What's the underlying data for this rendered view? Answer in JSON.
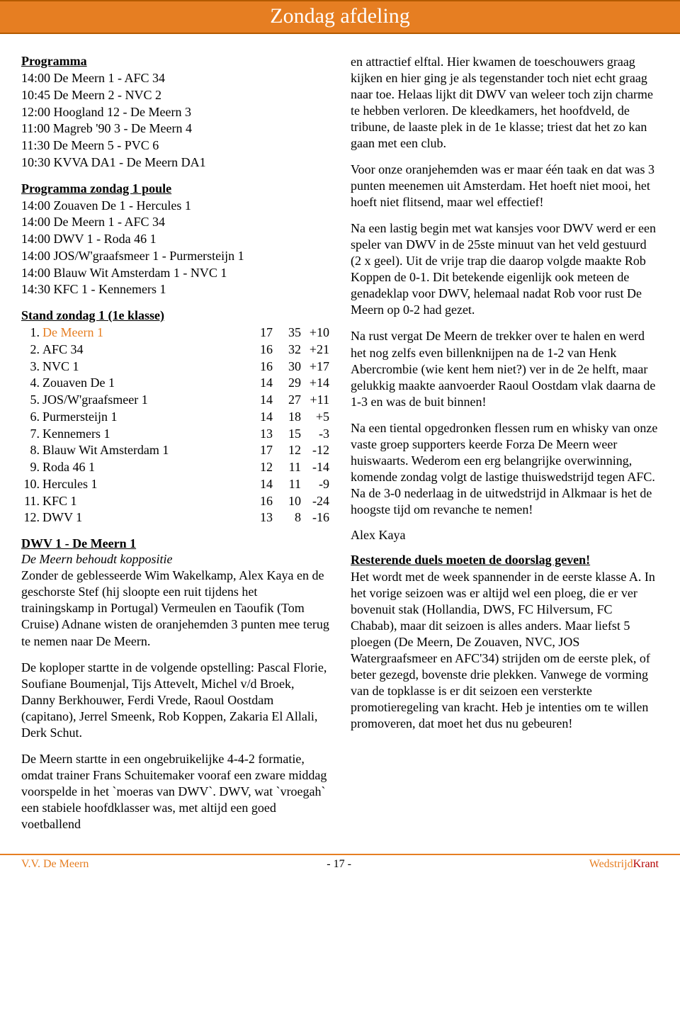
{
  "header": {
    "title": "Zondag afdeling"
  },
  "programma": {
    "heading": "Programma",
    "items": [
      "14:00 De Meern 1 - AFC 34",
      "10:45 De Meern 2 - NVC 2",
      "12:00 Hoogland 12 - De Meern 3",
      "11:00 Magreb '90 3 - De Meern 4",
      "11:30 De Meern 5 - PVC 6",
      "10:30 KVVA DA1 - De Meern DA1"
    ]
  },
  "poule": {
    "heading": "Programma zondag 1 poule",
    "items": [
      "14:00 Zouaven De 1 - Hercules 1",
      "14:00 De Meern 1 - AFC 34",
      "14:00 DWV 1 - Roda 46 1",
      "14:00 JOS/W'graafsmeer 1 - Purmersteijn 1",
      "14:00 Blauw Wit Amsterdam 1 - NVC 1",
      "14:30 KFC 1 - Kennemers 1"
    ]
  },
  "stand": {
    "heading": "Stand zondag 1 (1e klasse)",
    "rows": [
      {
        "rank": "1.",
        "team": "De Meern 1",
        "c1": "17",
        "c2": "35",
        "c3": "+10",
        "highlight": true
      },
      {
        "rank": "2.",
        "team": "AFC 34",
        "c1": "16",
        "c2": "32",
        "c3": "+21"
      },
      {
        "rank": "3.",
        "team": "NVC 1",
        "c1": "16",
        "c2": "30",
        "c3": "+17"
      },
      {
        "rank": "4.",
        "team": "Zouaven De 1",
        "c1": "14",
        "c2": "29",
        "c3": "+14"
      },
      {
        "rank": "5.",
        "team": "JOS/W'graafsmeer 1",
        "c1": "14",
        "c2": "27",
        "c3": "+11"
      },
      {
        "rank": "6.",
        "team": "Purmersteijn 1",
        "c1": "14",
        "c2": "18",
        "c3": "+5"
      },
      {
        "rank": "7.",
        "team": "Kennemers 1",
        "c1": "13",
        "c2": "15",
        "c3": "-3"
      },
      {
        "rank": "8.",
        "team": "Blauw Wit Amsterdam 1",
        "c1": "17",
        "c2": "12",
        "c3": "-12"
      },
      {
        "rank": "9.",
        "team": "Roda 46 1",
        "c1": "12",
        "c2": "11",
        "c3": "-14"
      },
      {
        "rank": "10.",
        "team": "Hercules 1",
        "c1": "14",
        "c2": "11",
        "c3": "-9"
      },
      {
        "rank": "11.",
        "team": "KFC 1",
        "c1": "16",
        "c2": "10",
        "c3": "-24"
      },
      {
        "rank": "12.",
        "team": "DWV 1",
        "c1": "13",
        "c2": "8",
        "c3": "-16"
      }
    ]
  },
  "match": {
    "heading": "DWV 1 - De Meern 1",
    "subtitle": "De Meern behoudt koppositie",
    "p1": "Zonder de geblesseerde Wim Wakelkamp, Alex Kaya en de geschorste Stef (hij sloopte een ruit tijdens het trainingskamp in Portugal) Vermeulen en Taoufik (Tom Cruise) Adnane wisten de oranjehemden 3 punten mee terug te nemen naar De Meern.",
    "p2": "De koploper startte in de volgende opstelling: Pascal Florie, Soufiane Boumenjal, Tijs Attevelt, Michel v/d Broek, Danny Berkhouwer, Ferdi Vrede, Raoul Oostdam (capitano), Jerrel Smeenk, Rob Koppen, Zakaria El Allali, Derk Schut.",
    "p3": "De Meern startte in een ongebruikelijke 4-4-2 formatie, omdat trainer Frans Schuitemaker vooraf een zware middag voorspelde in het `moeras van DWV`. DWV, wat `vroegah` een stabiele hoofdklasser was, met altijd een goed voetballend"
  },
  "right": {
    "p1": "en attractief elftal. Hier kwamen de toeschouwers graag kijken en hier ging je als tegenstander toch niet echt graag naar toe. Helaas lijkt dit DWV van weleer toch zijn charme te hebben verloren. De kleedkamers, het hoofdveld, de tribune, de laaste plek in de 1e klasse; triest dat het zo kan gaan met een club.",
    "p2": "Voor onze oranjehemden was er maar één taak en dat was 3 punten meenemen uit Amsterdam. Het hoeft niet mooi, het hoeft niet flitsend, maar wel effectief!",
    "p3": "Na een lastig begin met wat kansjes voor DWV werd er een speler van DWV in de 25ste minuut van het veld gestuurd (2 x geel). Uit de vrije trap die daarop volgde maakte Rob Koppen de 0-1. Dit betekende eigenlijk ook meteen de genadeklap voor DWV, helemaal nadat Rob voor rust De Meern op 0-2 had gezet.",
    "p4": "Na rust vergat De Meern de trekker over te halen en werd het nog zelfs even billenknijpen na de 1-2 van Henk Abercrombie (wie kent hem niet?) ver in de 2e helft, maar gelukkig maakte aanvoerder Raoul Oostdam vlak daarna de 1-3 en was de buit binnen!",
    "p5": "Na een tiental opgedronken flessen rum en whisky van onze vaste groep supporters keerde Forza De Meern weer huiswaarts. Wederom een erg belangrijke overwinning, komende zondag volgt de lastige thuiswedstrijd tegen AFC. Na de 3-0 nederlaag in de uitwedstrijd in Alkmaar is het de hoogste tijd om revanche te nemen!",
    "signature": "Alex Kaya",
    "resterende_heading": "Resterende duels moeten de doorslag geven!",
    "p6": "Het wordt met de week spannender in de eerste klasse A. In het vorige seizoen was er altijd wel een ploeg, die er ver bovenuit stak (Hollandia, DWS, FC Hilversum, FC Chabab), maar dit seizoen is alles anders. Maar liefst 5 ploegen (De Meern, De Zouaven, NVC, JOS Watergraafsmeer en AFC'34) strijden om de eerste plek, of beter gezegd, bovenste drie plekken. Vanwege de vorming van de topklasse is er dit seizoen een versterkte promotieregeling van kracht. Heb je intenties om te willen promoveren, dat moet het dus nu gebeuren!"
  },
  "footer": {
    "left": "V.V. De Meern",
    "center": "- 17 -",
    "right_a": "Wedstrijd",
    "right_b": "Krant"
  }
}
